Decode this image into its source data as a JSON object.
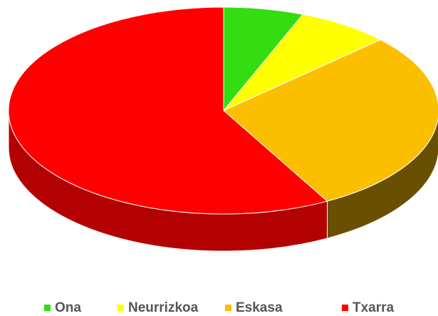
{
  "chart_data": {
    "type": "pie",
    "categories": [
      "Ona",
      "Neurrizkoa",
      "Eskasa",
      "Txarra"
    ],
    "values": [
      6,
      7,
      29,
      58
    ],
    "colors": [
      "#33dd11",
      "#ffff00",
      "#fbbf00",
      "#ff0000"
    ],
    "legend": "bottom"
  }
}
